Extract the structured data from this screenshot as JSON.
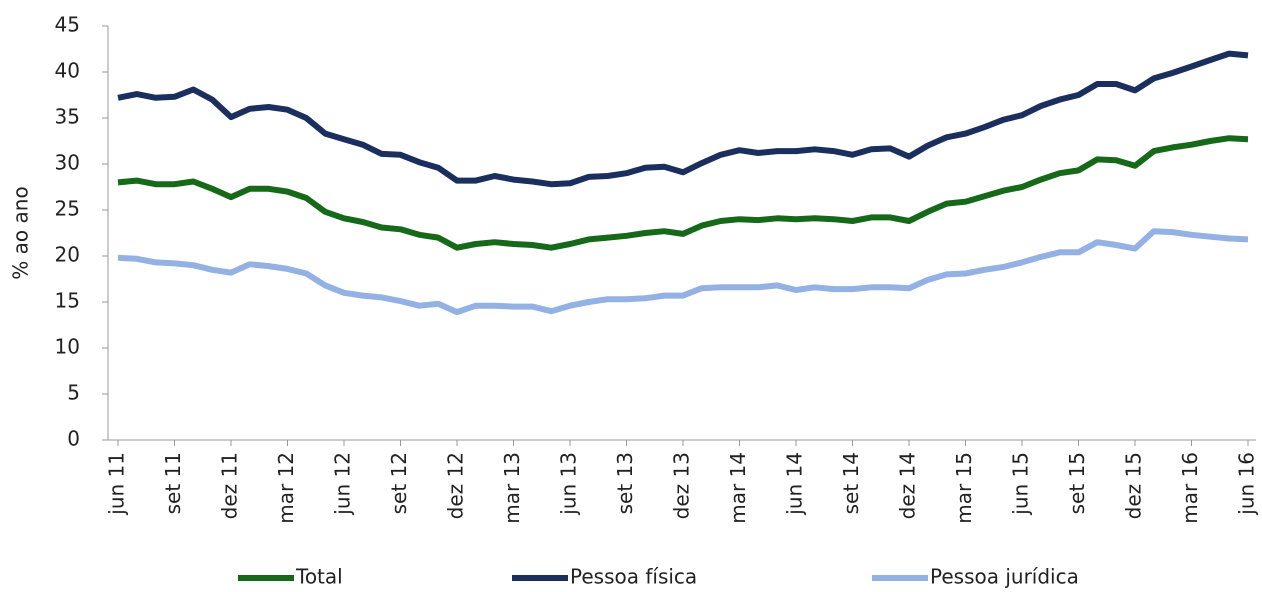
{
  "chart_data": {
    "type": "line",
    "y_label": "% ao ano",
    "categories": [
      "jun 11",
      null,
      null,
      "set 11",
      null,
      null,
      "dez 11",
      null,
      null,
      "mar 12",
      null,
      null,
      "jun 12",
      null,
      null,
      "set 12",
      null,
      null,
      "dez 12",
      null,
      null,
      "mar 13",
      null,
      null,
      "jun 13",
      null,
      null,
      "set 13",
      null,
      null,
      "dez 13",
      null,
      null,
      "mar 14",
      null,
      null,
      "jun 14",
      null,
      null,
      "set 14",
      null,
      null,
      "dez 14",
      null,
      null,
      "mar 15",
      null,
      null,
      "jun 15",
      null,
      null,
      "set 15",
      null,
      null,
      "dez 15",
      null,
      null,
      "mar 16",
      null,
      null,
      "jun 16"
    ],
    "series": [
      {
        "name": "Total",
        "color": "#17691a",
        "values": [
          28.0,
          28.2,
          27.8,
          27.8,
          28.1,
          27.3,
          26.4,
          27.3,
          27.3,
          27.0,
          26.3,
          24.8,
          24.1,
          23.7,
          23.1,
          22.9,
          22.3,
          22.0,
          20.9,
          21.3,
          21.5,
          21.3,
          21.2,
          20.9,
          21.3,
          21.8,
          22.0,
          22.2,
          22.5,
          22.7,
          22.4,
          23.3,
          23.8,
          24.0,
          23.9,
          24.1,
          24.0,
          24.1,
          24.0,
          23.8,
          24.2,
          24.2,
          23.8,
          24.8,
          25.7,
          25.9,
          26.5,
          27.1,
          27.5,
          28.3,
          29.0,
          29.3,
          30.5,
          30.4,
          29.8,
          31.4,
          31.8,
          32.1,
          32.5,
          32.8,
          32.7
        ]
      },
      {
        "name": "Pessoa física",
        "color": "#1b2f5f",
        "values": [
          37.2,
          37.6,
          37.2,
          37.3,
          38.1,
          37.0,
          35.1,
          36.0,
          36.2,
          35.9,
          35.0,
          33.3,
          32.7,
          32.1,
          31.1,
          31.0,
          30.2,
          29.6,
          28.2,
          28.2,
          28.7,
          28.3,
          28.1,
          27.8,
          27.9,
          28.6,
          28.7,
          29.0,
          29.6,
          29.7,
          29.1,
          30.1,
          31.0,
          31.5,
          31.2,
          31.4,
          31.4,
          31.6,
          31.4,
          31.0,
          31.6,
          31.7,
          30.8,
          32.0,
          32.9,
          33.3,
          34.0,
          34.8,
          35.3,
          36.3,
          37.0,
          37.5,
          38.7,
          38.7,
          38.0,
          39.3,
          39.9,
          40.6,
          41.3,
          42.0,
          41.8
        ]
      },
      {
        "name": "Pessoa jurídica",
        "color": "#93b1e2",
        "values": [
          19.8,
          19.7,
          19.3,
          19.2,
          19.0,
          18.5,
          18.2,
          19.1,
          18.9,
          18.6,
          18.1,
          16.8,
          16.0,
          15.7,
          15.5,
          15.1,
          14.6,
          14.8,
          13.9,
          14.6,
          14.6,
          14.5,
          14.5,
          14.0,
          14.6,
          15.0,
          15.3,
          15.3,
          15.4,
          15.7,
          15.7,
          16.5,
          16.6,
          16.6,
          16.6,
          16.8,
          16.3,
          16.6,
          16.4,
          16.4,
          16.6,
          16.6,
          16.5,
          17.4,
          18.0,
          18.1,
          18.5,
          18.8,
          19.3,
          19.9,
          20.4,
          20.4,
          21.5,
          21.2,
          20.8,
          22.7,
          22.6,
          22.3,
          22.1,
          21.9,
          21.8
        ]
      }
    ],
    "ylim": [
      0,
      45
    ],
    "yticks": [
      0,
      5,
      10,
      15,
      20,
      25,
      30,
      35,
      40,
      45
    ],
    "legend": "bottom"
  }
}
